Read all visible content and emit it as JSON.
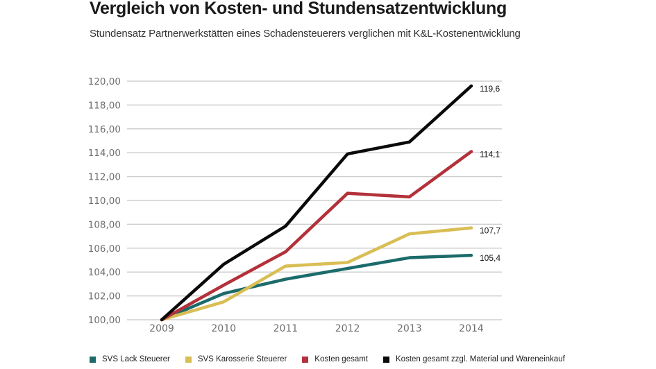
{
  "chart_data": {
    "type": "line",
    "title": "Vergleich von Kosten- und Stundensatzentwicklung",
    "subtitle": "Stundensatz Partnerwerkstätten eines Schadensteuerers verglichen mit K&L-Kostenentwicklung",
    "xlabel": "",
    "ylabel": "",
    "x": [
      "2009",
      "2010",
      "2011",
      "2012",
      "2013",
      "2014"
    ],
    "ylim": [
      100,
      120
    ],
    "yticks": [
      "100,00",
      "102,00",
      "104,00",
      "106,00",
      "108,00",
      "110,00",
      "112,00",
      "114,00",
      "116,00",
      "118,00",
      "120,00"
    ],
    "ytick_values": [
      100,
      102,
      104,
      106,
      108,
      110,
      112,
      114,
      116,
      118,
      120
    ],
    "grid": true,
    "legend_position": "bottom",
    "series": [
      {
        "name": "SVS Lack Steuerer",
        "color": "#1c6b6b",
        "values": [
          100,
          102.2,
          103.4,
          104.3,
          105.2,
          105.4
        ],
        "end_label": "105,4"
      },
      {
        "name": "SVS Karosserie Steuerer",
        "color": "#d9be55",
        "values": [
          100,
          101.5,
          104.5,
          104.8,
          107.2,
          107.7
        ],
        "end_label": "107,7"
      },
      {
        "name": "Kosten gesamt",
        "color": "#b3313a",
        "values": [
          100,
          102.9,
          105.7,
          110.6,
          110.3,
          114.1
        ],
        "end_label": "114,1"
      },
      {
        "name": "Kosten gesamt zzgl. Material und Wareneinkauf",
        "color": "#0a0a0a",
        "values": [
          100,
          104.65,
          107.85,
          113.9,
          114.9,
          119.6
        ],
        "end_label": "119,6"
      }
    ]
  }
}
